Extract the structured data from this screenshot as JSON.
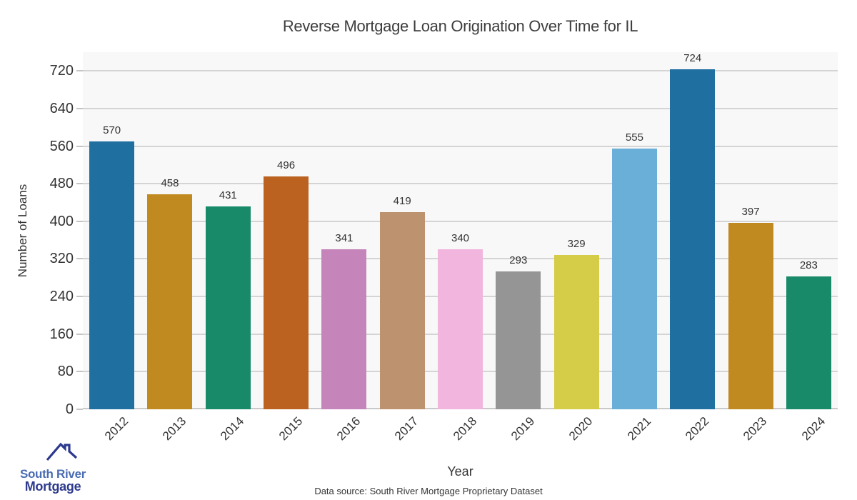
{
  "chart_data": {
    "type": "bar",
    "title": "Reverse Mortgage Loan Origination Over Time for IL",
    "xlabel": "Year",
    "ylabel": "Number of Loans",
    "categories": [
      "2012",
      "2013",
      "2014",
      "2015",
      "2016",
      "2017",
      "2018",
      "2019",
      "2020",
      "2021",
      "2022",
      "2023",
      "2024"
    ],
    "values": [
      570,
      458,
      431,
      496,
      341,
      419,
      340,
      293,
      329,
      555,
      724,
      397,
      283
    ],
    "bar_colors": [
      "#1f6fa0",
      "#c08a20",
      "#198a69",
      "#bc6220",
      "#c584ba",
      "#bd926f",
      "#f2b5de",
      "#959595",
      "#d5cc48",
      "#69afd8",
      "#1f6fa0",
      "#c08a20",
      "#198a69"
    ],
    "ylim": [
      0,
      760
    ],
    "yticks": [
      0,
      80,
      160,
      240,
      320,
      400,
      480,
      560,
      640,
      720
    ],
    "grid": "horizontal",
    "legend": "none",
    "value_labels": "above-bars"
  },
  "footer": {
    "data_source": "Data source: South River Mortgage Proprietary Dataset"
  },
  "logo": {
    "line1": "South River",
    "line2": "Mortgage"
  },
  "colors": {
    "plot_bg": "#f8f8f8",
    "gridline": "#d4d4d4",
    "tick": "#c4c4c4",
    "axis_text": "#333333",
    "title_text": "#3d3d3d",
    "logo_light_blue": "#4a6cb3",
    "logo_navy": "#2d3a8d"
  }
}
